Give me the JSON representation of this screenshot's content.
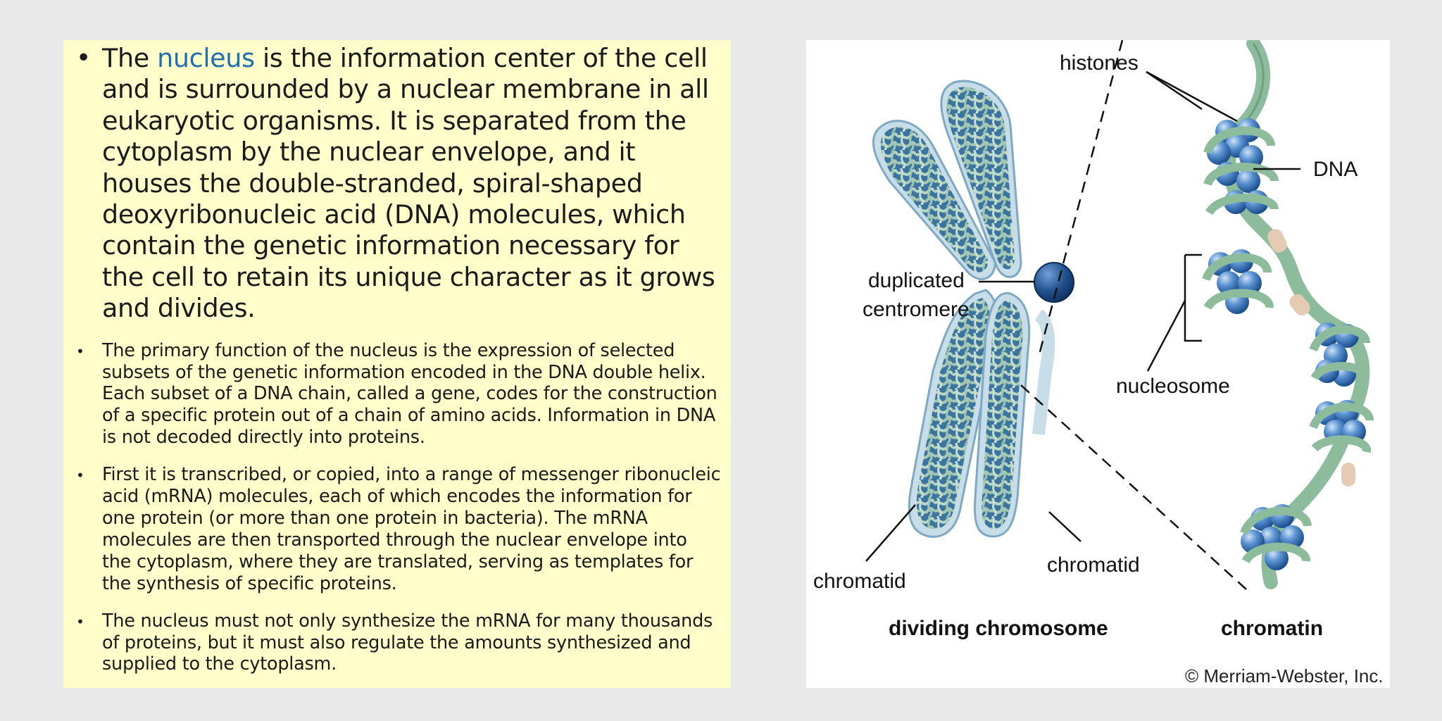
{
  "text_panel": {
    "bullet1": {
      "prefix": "The ",
      "link": "nucleus",
      "rest": " is the information center of the cell and is surrounded by a nuclear membrane in all eukaryotic organisms. It is separated from the cytoplasm by the nuclear envelope, and it houses the double-stranded, spiral-shaped deoxyribonucleic acid (DNA) molecules, which contain the genetic information necessary for the cell to retain its unique character as it grows and divides."
    },
    "bullet2": "The primary function of the nucleus is the expression of selected subsets of the genetic information encoded in the DNA double helix. Each subset of a DNA chain, called a gene, codes for the construction of a specific protein out of a chain of amino acids. Information in DNA is not decoded directly into proteins.",
    "bullet3": "First it is transcribed, or copied, into a range of messenger ribonucleic acid (mRNA) molecules, each of which encodes the information for one protein (or more than one protein in bacteria). The mRNA molecules are then transported through the nuclear envelope into the cytoplasm, where they are translated, serving as templates for the synthesis of specific proteins.",
    "bullet4": "The nucleus must not only synthesize the mRNA for many thousands of proteins, but it must also regulate the amounts synthesized and supplied to the cytoplasm.",
    "bullet_glyph": "•"
  },
  "figure": {
    "labels": {
      "histones": "histones",
      "dna": "DNA",
      "duplicated": "duplicated",
      "centromere": "centromere",
      "nucleosome": "nucleosome",
      "chromatid_left": "chromatid",
      "chromatid_right": "chromatid",
      "title_left": "dividing chromosome",
      "title_right": "chromatin"
    },
    "copyright": "© Merriam-Webster, Inc.",
    "colors": {
      "chromatid_fill": "#b9d3df",
      "chromatid_dark": "#3f79a6",
      "fiber": "#a6c9b4",
      "centromere": "#1f4f8a",
      "histone": "#4f86c8",
      "dna_ribbon": "#8dbc9c",
      "linker": "#e5cbb3"
    }
  }
}
